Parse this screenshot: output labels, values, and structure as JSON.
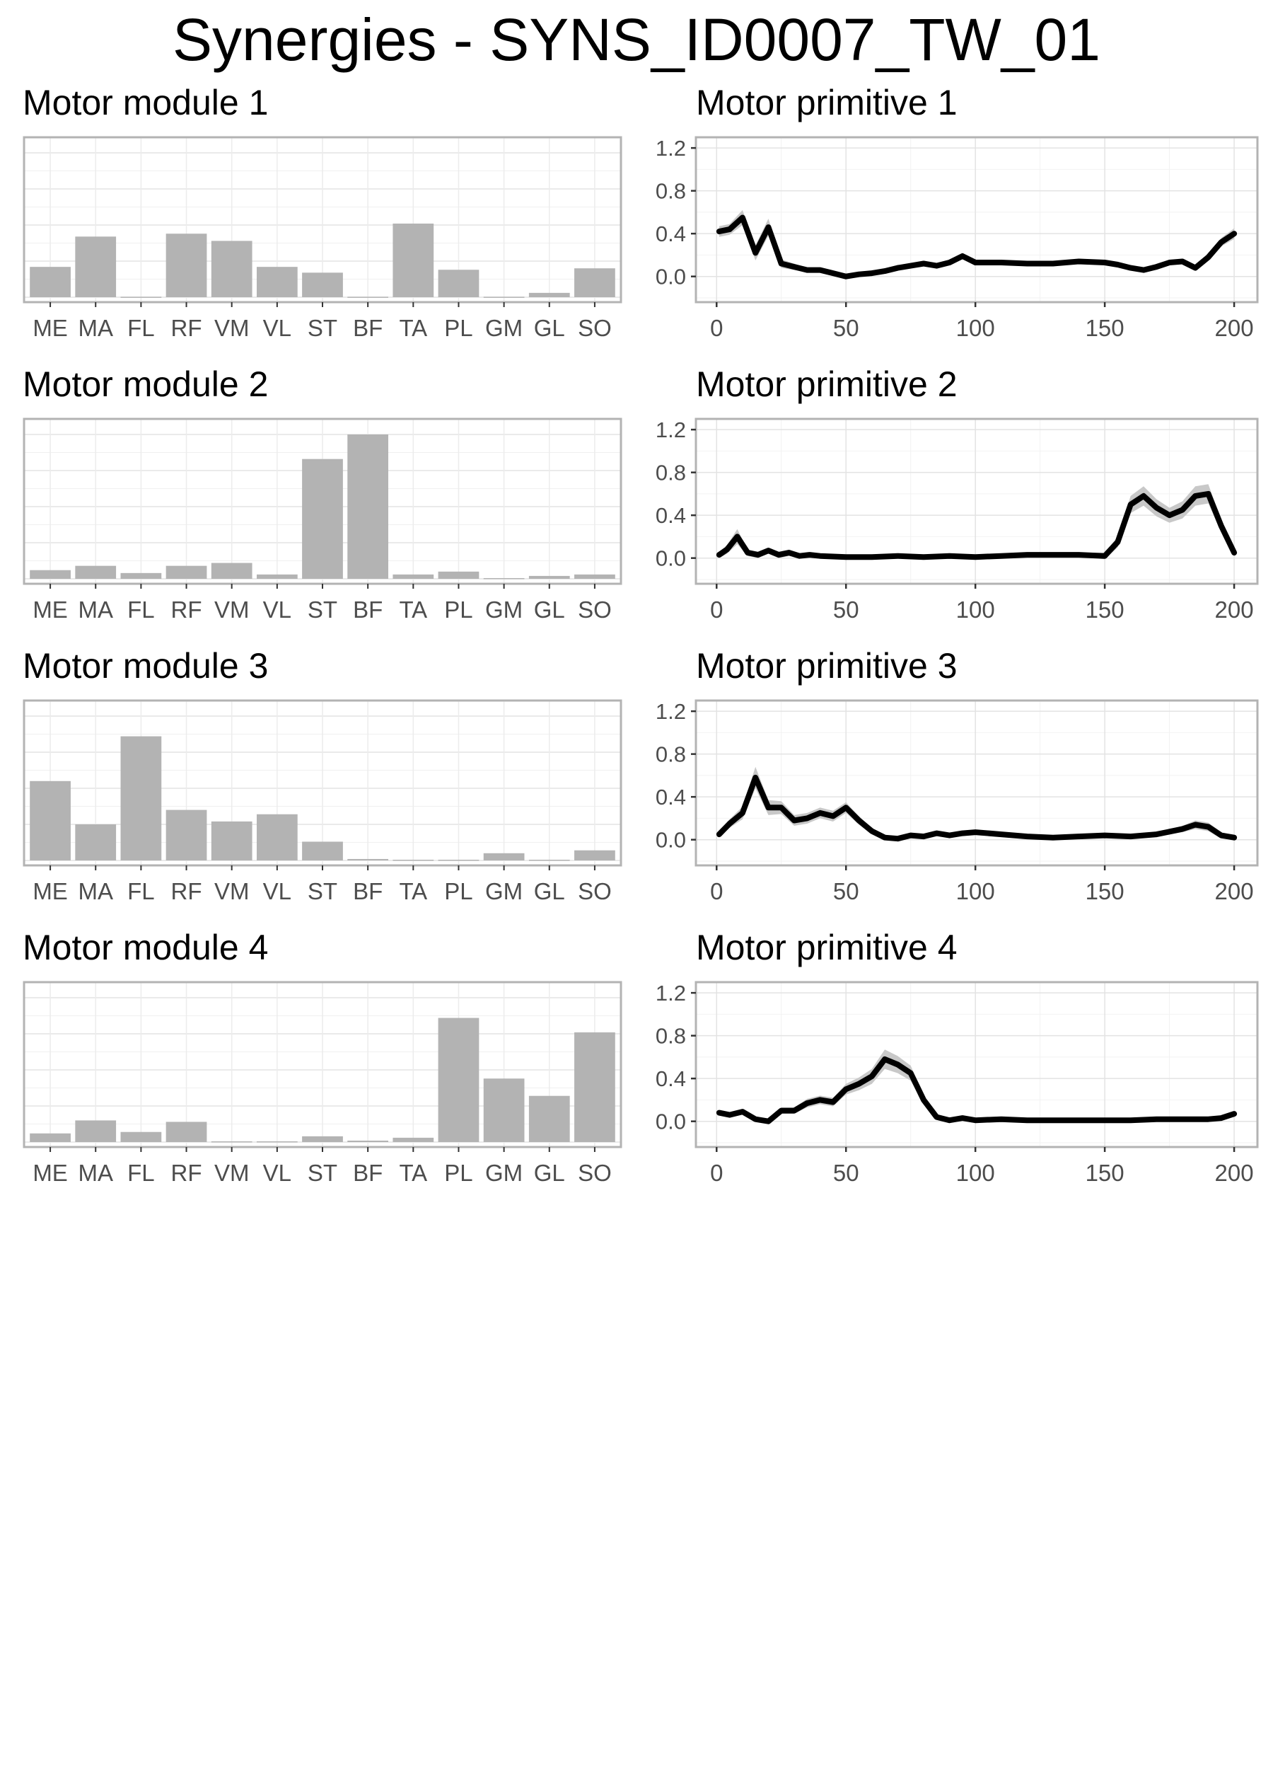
{
  "title": "Synergies - SYNS_ID0007_TW_01",
  "chart_data": [
    {
      "type": "bar",
      "title": "Motor module 1",
      "categories": [
        "ME",
        "MA",
        "FL",
        "RF",
        "VM",
        "VL",
        "ST",
        "BF",
        "TA",
        "PL",
        "GM",
        "GL",
        "SO"
      ],
      "values": [
        0.21,
        0.42,
        0.003,
        0.44,
        0.39,
        0.21,
        0.17,
        0.003,
        0.51,
        0.19,
        0.003,
        0.03,
        0.2
      ],
      "ylim": [
        0,
        1
      ],
      "grid": true
    },
    {
      "type": "line",
      "title": "Motor primitive 1",
      "x": [
        1,
        5,
        10,
        15,
        20,
        25,
        30,
        35,
        40,
        45,
        50,
        55,
        60,
        65,
        70,
        75,
        80,
        85,
        90,
        95,
        100,
        110,
        120,
        130,
        140,
        150,
        155,
        160,
        165,
        170,
        175,
        180,
        185,
        190,
        195,
        200
      ],
      "y": [
        0.42,
        0.44,
        0.55,
        0.22,
        0.46,
        0.12,
        0.09,
        0.06,
        0.06,
        0.03,
        0.0,
        0.02,
        0.03,
        0.05,
        0.08,
        0.1,
        0.12,
        0.1,
        0.13,
        0.19,
        0.13,
        0.13,
        0.12,
        0.12,
        0.14,
        0.13,
        0.11,
        0.08,
        0.06,
        0.09,
        0.13,
        0.14,
        0.08,
        0.18,
        0.32,
        0.4
      ],
      "band": [
        0.05,
        0.05,
        0.07,
        0.07,
        0.08,
        0.04,
        0.03,
        0.02,
        0.02,
        0.02,
        0.02,
        0.02,
        0.02,
        0.02,
        0.02,
        0.02,
        0.02,
        0.02,
        0.02,
        0.03,
        0.02,
        0.02,
        0.02,
        0.02,
        0.02,
        0.02,
        0.02,
        0.02,
        0.02,
        0.02,
        0.02,
        0.02,
        0.02,
        0.03,
        0.04,
        0.05
      ],
      "xticks": [
        0,
        50,
        100,
        150,
        200
      ],
      "yticks": [
        "0.0",
        "0.4",
        "0.8",
        "1.2"
      ],
      "xlim": [
        -8,
        209
      ],
      "ylim": [
        -0.24,
        1.3
      ],
      "grid": true
    },
    {
      "type": "bar",
      "title": "Motor module 2",
      "categories": [
        "ME",
        "MA",
        "FL",
        "RF",
        "VM",
        "VL",
        "ST",
        "BF",
        "TA",
        "PL",
        "GM",
        "GL",
        "SO"
      ],
      "values": [
        0.06,
        0.09,
        0.04,
        0.09,
        0.11,
        0.03,
        0.83,
        1.0,
        0.03,
        0.05,
        0.005,
        0.02,
        0.03
      ],
      "ylim": [
        0,
        1
      ],
      "grid": true
    },
    {
      "type": "line",
      "title": "Motor primitive 2",
      "x": [
        1,
        4,
        8,
        12,
        16,
        20,
        24,
        28,
        32,
        36,
        40,
        50,
        60,
        70,
        80,
        90,
        100,
        110,
        120,
        130,
        140,
        150,
        155,
        160,
        165,
        170,
        175,
        180,
        185,
        190,
        195,
        200
      ],
      "y": [
        0.03,
        0.08,
        0.2,
        0.05,
        0.03,
        0.07,
        0.03,
        0.05,
        0.02,
        0.03,
        0.02,
        0.01,
        0.01,
        0.02,
        0.01,
        0.02,
        0.01,
        0.02,
        0.03,
        0.03,
        0.03,
        0.02,
        0.15,
        0.5,
        0.58,
        0.47,
        0.4,
        0.45,
        0.58,
        0.6,
        0.3,
        0.05
      ],
      "band": [
        0.03,
        0.04,
        0.07,
        0.03,
        0.03,
        0.03,
        0.03,
        0.03,
        0.02,
        0.02,
        0.02,
        0.02,
        0.02,
        0.02,
        0.02,
        0.02,
        0.02,
        0.02,
        0.02,
        0.02,
        0.02,
        0.03,
        0.05,
        0.08,
        0.09,
        0.08,
        0.07,
        0.08,
        0.09,
        0.09,
        0.06,
        0.03
      ],
      "xticks": [
        0,
        50,
        100,
        150,
        200
      ],
      "yticks": [
        "0.0",
        "0.4",
        "0.8",
        "1.2"
      ],
      "xlim": [
        -8,
        209
      ],
      "ylim": [
        -0.24,
        1.3
      ],
      "grid": true
    },
    {
      "type": "bar",
      "title": "Motor module 3",
      "categories": [
        "ME",
        "MA",
        "FL",
        "RF",
        "VM",
        "VL",
        "ST",
        "BF",
        "TA",
        "PL",
        "GM",
        "GL",
        "SO"
      ],
      "values": [
        0.55,
        0.25,
        0.86,
        0.35,
        0.27,
        0.32,
        0.13,
        0.01,
        0.005,
        0.005,
        0.05,
        0.005,
        0.07
      ],
      "ylim": [
        0,
        1
      ],
      "grid": true
    },
    {
      "type": "line",
      "title": "Motor primitive 3",
      "x": [
        1,
        5,
        10,
        15,
        20,
        25,
        30,
        35,
        40,
        45,
        50,
        55,
        60,
        65,
        70,
        75,
        80,
        85,
        90,
        95,
        100,
        110,
        120,
        130,
        140,
        150,
        160,
        170,
        180,
        185,
        190,
        195,
        200
      ],
      "y": [
        0.05,
        0.15,
        0.25,
        0.58,
        0.3,
        0.3,
        0.18,
        0.2,
        0.25,
        0.22,
        0.3,
        0.18,
        0.08,
        0.02,
        0.01,
        0.04,
        0.03,
        0.06,
        0.04,
        0.06,
        0.07,
        0.05,
        0.03,
        0.02,
        0.03,
        0.04,
        0.03,
        0.05,
        0.1,
        0.14,
        0.12,
        0.04,
        0.02
      ],
      "band": [
        0.03,
        0.04,
        0.06,
        0.1,
        0.07,
        0.06,
        0.05,
        0.05,
        0.05,
        0.05,
        0.05,
        0.04,
        0.03,
        0.02,
        0.02,
        0.02,
        0.02,
        0.02,
        0.02,
        0.02,
        0.02,
        0.02,
        0.02,
        0.02,
        0.02,
        0.02,
        0.02,
        0.02,
        0.03,
        0.04,
        0.04,
        0.03,
        0.02
      ],
      "xticks": [
        0,
        50,
        100,
        150,
        200
      ],
      "yticks": [
        "0.0",
        "0.4",
        "0.8",
        "1.2"
      ],
      "xlim": [
        -8,
        209
      ],
      "ylim": [
        -0.24,
        1.3
      ],
      "grid": true
    },
    {
      "type": "bar",
      "title": "Motor module 4",
      "categories": [
        "ME",
        "MA",
        "FL",
        "RF",
        "VM",
        "VL",
        "ST",
        "BF",
        "TA",
        "PL",
        "GM",
        "GL",
        "SO"
      ],
      "values": [
        0.06,
        0.15,
        0.07,
        0.14,
        0.005,
        0.005,
        0.04,
        0.01,
        0.03,
        0.86,
        0.44,
        0.32,
        0.76
      ],
      "ylim": [
        0,
        1
      ],
      "grid": true
    },
    {
      "type": "line",
      "title": "Motor primitive 4",
      "x": [
        1,
        5,
        10,
        15,
        20,
        25,
        30,
        35,
        40,
        45,
        50,
        55,
        60,
        65,
        70,
        75,
        80,
        85,
        90,
        95,
        100,
        110,
        120,
        130,
        140,
        150,
        160,
        170,
        180,
        190,
        195,
        200
      ],
      "y": [
        0.08,
        0.06,
        0.09,
        0.02,
        0.0,
        0.1,
        0.1,
        0.17,
        0.2,
        0.18,
        0.3,
        0.35,
        0.42,
        0.58,
        0.53,
        0.45,
        0.2,
        0.04,
        0.01,
        0.03,
        0.01,
        0.02,
        0.01,
        0.01,
        0.01,
        0.01,
        0.01,
        0.02,
        0.02,
        0.02,
        0.03,
        0.07
      ],
      "band": [
        0.02,
        0.02,
        0.02,
        0.02,
        0.02,
        0.03,
        0.03,
        0.04,
        0.04,
        0.04,
        0.05,
        0.06,
        0.07,
        0.09,
        0.08,
        0.07,
        0.04,
        0.02,
        0.02,
        0.02,
        0.02,
        0.02,
        0.02,
        0.02,
        0.02,
        0.02,
        0.02,
        0.02,
        0.02,
        0.02,
        0.02,
        0.02
      ],
      "xticks": [
        0,
        50,
        100,
        150,
        200
      ],
      "yticks": [
        "0.0",
        "0.4",
        "0.8",
        "1.2"
      ],
      "xlim": [
        -8,
        209
      ],
      "ylim": [
        -0.24,
        1.3
      ],
      "grid": true
    }
  ]
}
